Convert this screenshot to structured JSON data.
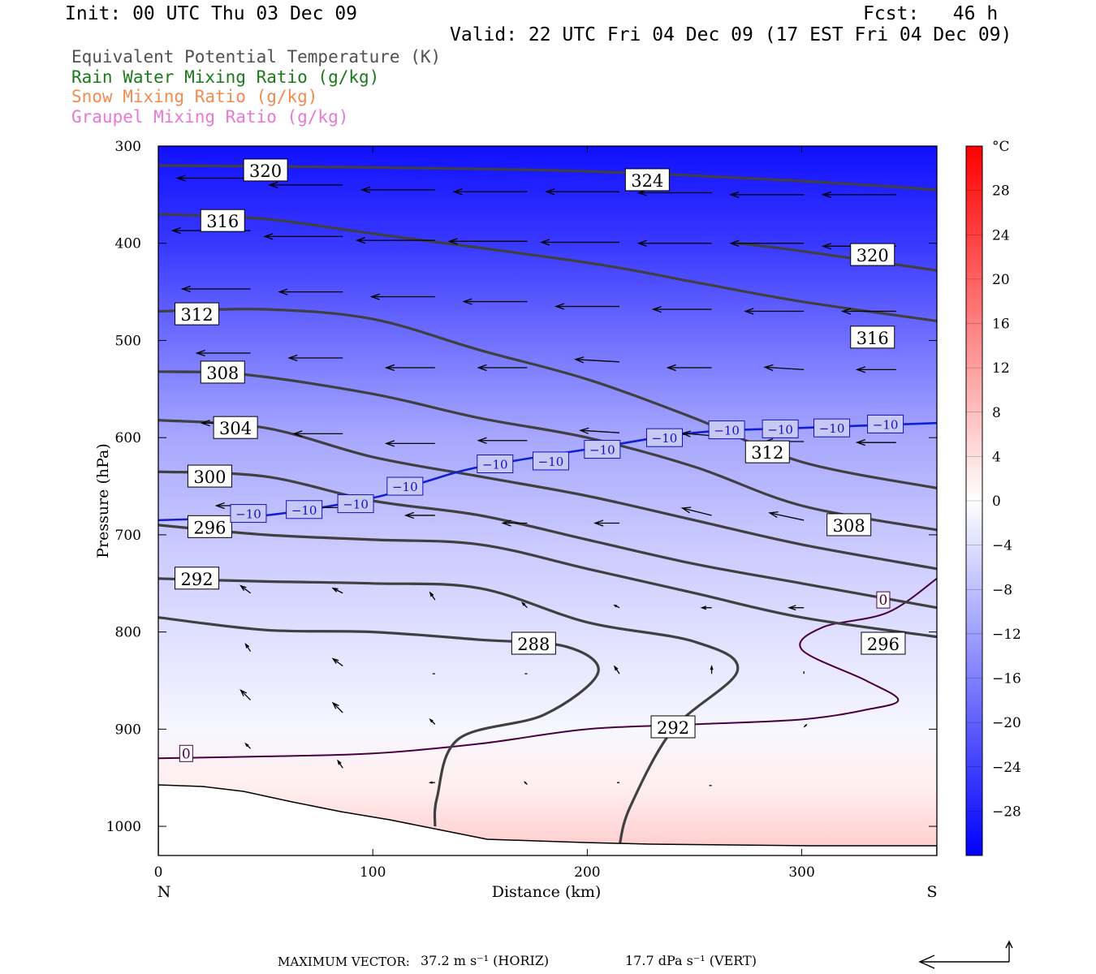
{
  "header": {
    "init": "Init: 00 UTC Thu 03 Dec 09",
    "fcst": "Fcst:   46 h",
    "valid": "Valid: 22 UTC Fri 04 Dec 09 (17 EST Fri 04 Dec 09)"
  },
  "legend": [
    {
      "text": "Equivalent Potential Temperature (K)",
      "color": "#505050"
    },
    {
      "text": "Rain Water Mixing Ratio (g/kg)",
      "color": "#1a7a1a"
    },
    {
      "text": "Snow Mixing Ratio (g/kg)",
      "color": "#f08c50"
    },
    {
      "text": "Graupel Mixing Ratio (g/kg)",
      "color": "#e878d8"
    }
  ],
  "footer": {
    "max_vector": "MAXIMUM VECTOR:",
    "horiz": "37.2 m s⁻¹ (HORIZ)",
    "vert": "17.7 dPa s⁻¹ (VERT)"
  },
  "chart_data": {
    "type": "heatmap",
    "title": "",
    "xlabel": "Distance (km)",
    "ylabel": "Pressure (hPa)",
    "xlim": [
      0,
      363
    ],
    "ylim": [
      1030,
      300
    ],
    "x_ticks": [
      0,
      100,
      200,
      300
    ],
    "y_ticks": [
      300,
      400,
      500,
      600,
      700,
      800,
      900,
      1000
    ],
    "x_end_labels": {
      "left": "N",
      "right": "S"
    },
    "colorbar": {
      "unit": "°C",
      "range": [
        -32,
        32
      ],
      "ticks": [
        28,
        24,
        20,
        16,
        12,
        8,
        4,
        0,
        -4,
        -8,
        -12,
        -16,
        -20,
        -24,
        -28
      ],
      "cold_color": "#0000ff",
      "warm_color": "#ff0000"
    },
    "temperature_field_samples": [
      {
        "p": 300,
        "t": -30
      },
      {
        "p": 400,
        "t": -25
      },
      {
        "p": 500,
        "t": -18
      },
      {
        "p": 600,
        "t": -11
      },
      {
        "p": 700,
        "t": -7
      },
      {
        "p": 800,
        "t": -4
      },
      {
        "p": 900,
        "t": -1
      },
      {
        "p": 960,
        "t": 2
      },
      {
        "p": 1020,
        "t": 6
      }
    ],
    "theta_e_contours": [
      {
        "value": 320,
        "points": [
          [
            0,
            320
          ],
          [
            100,
            322
          ],
          [
            200,
            326
          ],
          [
            300,
            336
          ],
          [
            363,
            345
          ]
        ]
      },
      {
        "value": 316,
        "points": [
          [
            0,
            370
          ],
          [
            50,
            375
          ],
          [
            100,
            390
          ],
          [
            200,
            420
          ],
          [
            250,
            440
          ],
          [
            300,
            460
          ],
          [
            363,
            480
          ]
        ]
      },
      {
        "value": 320,
        "points": [
          [
            270,
            400
          ],
          [
            300,
            408
          ],
          [
            363,
            428
          ]
        ]
      },
      {
        "value": 312,
        "points": [
          [
            0,
            470
          ],
          [
            50,
            468
          ],
          [
            100,
            478
          ],
          [
            150,
            510
          ],
          [
            200,
            540
          ],
          [
            250,
            580
          ],
          [
            300,
            625
          ],
          [
            363,
            652
          ]
        ]
      },
      {
        "value": 308,
        "points": [
          [
            0,
            532
          ],
          [
            40,
            535
          ],
          [
            100,
            555
          ],
          [
            150,
            580
          ],
          [
            200,
            600
          ],
          [
            250,
            630
          ],
          [
            300,
            670
          ],
          [
            363,
            695
          ]
        ]
      },
      {
        "value": 304,
        "points": [
          [
            0,
            582
          ],
          [
            50,
            590
          ],
          [
            100,
            620
          ],
          [
            150,
            640
          ],
          [
            200,
            660
          ],
          [
            250,
            685
          ],
          [
            300,
            710
          ],
          [
            363,
            735
          ]
        ]
      },
      {
        "value": 300,
        "points": [
          [
            0,
            635
          ],
          [
            50,
            640
          ],
          [
            100,
            665
          ],
          [
            150,
            680
          ],
          [
            200,
            705
          ],
          [
            250,
            730
          ],
          [
            300,
            750
          ],
          [
            363,
            775
          ]
        ]
      },
      {
        "value": 296,
        "points": [
          [
            0,
            690
          ],
          [
            50,
            700
          ],
          [
            100,
            705
          ],
          [
            150,
            710
          ],
          [
            200,
            735
          ],
          [
            250,
            760
          ],
          [
            300,
            785
          ],
          [
            363,
            805
          ]
        ]
      },
      {
        "value": 292,
        "points": [
          [
            0,
            745
          ],
          [
            50,
            748
          ],
          [
            100,
            750
          ],
          [
            150,
            755
          ],
          [
            200,
            790
          ],
          [
            250,
            810
          ],
          [
            270,
            840
          ],
          [
            240,
            900
          ],
          [
            220,
            980
          ],
          [
            215,
            1020
          ]
        ]
      },
      {
        "value": 288,
        "points": [
          [
            0,
            785
          ],
          [
            50,
            798
          ],
          [
            100,
            800
          ],
          [
            150,
            808
          ],
          [
            190,
            815
          ],
          [
            205,
            842
          ],
          [
            180,
            885
          ],
          [
            140,
            910
          ],
          [
            130,
            970
          ],
          [
            129,
            1000
          ]
        ]
      }
    ],
    "zero_deg_isotherm": [
      {
        "points": [
          [
            0,
            930
          ],
          [
            50,
            928
          ],
          [
            100,
            925
          ],
          [
            150,
            915
          ],
          [
            200,
            900
          ],
          [
            250,
            895
          ],
          [
            300,
            890
          ],
          [
            330,
            880
          ],
          [
            345,
            870
          ],
          [
            330,
            850
          ],
          [
            300,
            818
          ],
          [
            310,
            795
          ],
          [
            340,
            780
          ],
          [
            363,
            745
          ]
        ]
      }
    ],
    "minus10_isotherm": {
      "value": -10,
      "points": [
        [
          0,
          685
        ],
        [
          50,
          680
        ],
        [
          100,
          662
        ],
        [
          125,
          645
        ],
        [
          150,
          630
        ],
        [
          200,
          612
        ],
        [
          250,
          595
        ],
        [
          300,
          590
        ],
        [
          363,
          585
        ]
      ]
    },
    "theta_e_labels": [
      {
        "text": "320",
        "x": 50,
        "p": 325
      },
      {
        "text": "324",
        "x": 228,
        "p": 335
      },
      {
        "text": "316",
        "x": 30,
        "p": 377
      },
      {
        "text": "320",
        "x": 333,
        "p": 412
      },
      {
        "text": "312",
        "x": 18,
        "p": 473
      },
      {
        "text": "316",
        "x": 333,
        "p": 497
      },
      {
        "text": "308",
        "x": 30,
        "p": 533
      },
      {
        "text": "304",
        "x": 36,
        "p": 590
      },
      {
        "text": "312",
        "x": 284,
        "p": 615
      },
      {
        "text": "300",
        "x": 24,
        "p": 640
      },
      {
        "text": "308",
        "x": 322,
        "p": 690
      },
      {
        "text": "296",
        "x": 24,
        "p": 692
      },
      {
        "text": "292",
        "x": 18,
        "p": 745
      },
      {
        "text": "288",
        "x": 175,
        "p": 812
      },
      {
        "text": "296",
        "x": 338,
        "p": 812
      },
      {
        "text": "292",
        "x": 240,
        "p": 898
      }
    ],
    "zero_labels": [
      {
        "text": "0",
        "x": 13,
        "p": 925
      },
      {
        "text": "0",
        "x": 338,
        "p": 767
      }
    ],
    "minus10_labels": [
      {
        "text": "−10",
        "x": 42,
        "p": 678
      },
      {
        "text": "−10",
        "x": 68,
        "p": 674
      },
      {
        "text": "−10",
        "x": 92,
        "p": 668
      },
      {
        "text": "−10",
        "x": 115,
        "p": 650
      },
      {
        "text": "−10",
        "x": 157,
        "p": 627
      },
      {
        "text": "−10",
        "x": 183,
        "p": 624
      },
      {
        "text": "−10",
        "x": 207,
        "p": 612
      },
      {
        "text": "−10",
        "x": 236,
        "p": 600
      },
      {
        "text": "−10",
        "x": 265,
        "p": 592
      },
      {
        "text": "−10",
        "x": 290,
        "p": 591
      },
      {
        "text": "−10",
        "x": 314,
        "p": 590
      },
      {
        "text": "−10",
        "x": 339,
        "p": 586
      }
    ],
    "wind_vectors": [
      {
        "x": 0,
        "p": 333,
        "u": -32,
        "w": 0
      },
      {
        "x": 43,
        "p": 333,
        "u": -30,
        "w": 0
      },
      {
        "x": 86,
        "p": 340,
        "u": -30,
        "w": 0
      },
      {
        "x": 129,
        "p": 345,
        "u": -30,
        "w": 0
      },
      {
        "x": 172,
        "p": 347,
        "u": -30,
        "w": 0
      },
      {
        "x": 215,
        "p": 347,
        "u": -30,
        "w": 0
      },
      {
        "x": 258,
        "p": 348,
        "u": -30,
        "w": 0
      },
      {
        "x": 301,
        "p": 350,
        "u": -30,
        "w": 0
      },
      {
        "x": 344,
        "p": 350,
        "u": -30,
        "w": 0
      },
      {
        "x": 0,
        "p": 385,
        "u": -32,
        "w": 0
      },
      {
        "x": 43,
        "p": 387,
        "u": -32,
        "w": 0
      },
      {
        "x": 86,
        "p": 393,
        "u": -32,
        "w": 0
      },
      {
        "x": 129,
        "p": 397,
        "u": -32,
        "w": 0
      },
      {
        "x": 172,
        "p": 398,
        "u": -32,
        "w": 0
      },
      {
        "x": 215,
        "p": 399,
        "u": -32,
        "w": 0
      },
      {
        "x": 258,
        "p": 400,
        "u": -30,
        "w": 0
      },
      {
        "x": 301,
        "p": 400,
        "u": -30,
        "w": 0
      },
      {
        "x": 344,
        "p": 403,
        "u": -30,
        "w": 0
      },
      {
        "x": 0,
        "p": 445,
        "u": -28,
        "w": 0
      },
      {
        "x": 43,
        "p": 447,
        "u": -28,
        "w": 0
      },
      {
        "x": 86,
        "p": 450,
        "u": -26,
        "w": 0
      },
      {
        "x": 129,
        "p": 455,
        "u": -26,
        "w": 0
      },
      {
        "x": 172,
        "p": 460,
        "u": -26,
        "w": 0
      },
      {
        "x": 215,
        "p": 465,
        "u": -26,
        "w": 0
      },
      {
        "x": 258,
        "p": 468,
        "u": -24,
        "w": 0
      },
      {
        "x": 301,
        "p": 470,
        "u": -24,
        "w": 0
      },
      {
        "x": 344,
        "p": 470,
        "u": -22,
        "w": 0
      },
      {
        "x": 0,
        "p": 510,
        "u": -26,
        "w": 2
      },
      {
        "x": 43,
        "p": 513,
        "u": -22,
        "w": 0
      },
      {
        "x": 86,
        "p": 518,
        "u": -22,
        "w": 0
      },
      {
        "x": 129,
        "p": 528,
        "u": -20,
        "w": 0
      },
      {
        "x": 172,
        "p": 528,
        "u": -20,
        "w": 0
      },
      {
        "x": 215,
        "p": 522,
        "u": -18,
        "w": 1
      },
      {
        "x": 258,
        "p": 528,
        "u": -18,
        "w": 0
      },
      {
        "x": 301,
        "p": 530,
        "u": -16,
        "w": 1
      },
      {
        "x": 344,
        "p": 530,
        "u": -16,
        "w": 0
      },
      {
        "x": 0,
        "p": 588,
        "u": -22,
        "w": 2
      },
      {
        "x": 43,
        "p": 585,
        "u": -20,
        "w": 0
      },
      {
        "x": 86,
        "p": 596,
        "u": -20,
        "w": 0
      },
      {
        "x": 129,
        "p": 606,
        "u": -20,
        "w": 0
      },
      {
        "x": 172,
        "p": 603,
        "u": -20,
        "w": 0
      },
      {
        "x": 215,
        "p": 595,
        "u": -16,
        "w": 1
      },
      {
        "x": 258,
        "p": 598,
        "u": -12,
        "w": 1
      },
      {
        "x": 301,
        "p": 604,
        "u": -16,
        "w": 0
      },
      {
        "x": 344,
        "p": 605,
        "u": -16,
        "w": 0
      },
      {
        "x": 0,
        "p": 672,
        "u": -18,
        "w": 8
      },
      {
        "x": 43,
        "p": 670,
        "u": -14,
        "w": 0
      },
      {
        "x": 86,
        "p": 672,
        "u": -14,
        "w": 0
      },
      {
        "x": 129,
        "p": 680,
        "u": -12,
        "w": 0
      },
      {
        "x": 172,
        "p": 688,
        "u": -10,
        "w": 0
      },
      {
        "x": 215,
        "p": 688,
        "u": -10,
        "w": 0
      },
      {
        "x": 258,
        "p": 680,
        "u": -12,
        "w": 3
      },
      {
        "x": 301,
        "p": 685,
        "u": -14,
        "w": 3
      },
      {
        "x": 0,
        "p": 752,
        "u": -6,
        "w": 8
      },
      {
        "x": 43,
        "p": 760,
        "u": -4,
        "w": 3
      },
      {
        "x": 86,
        "p": 760,
        "u": -4,
        "w": 2
      },
      {
        "x": 129,
        "p": 767,
        "u": -2,
        "w": 3
      },
      {
        "x": 172,
        "p": 775,
        "u": -2,
        "w": 2
      },
      {
        "x": 215,
        "p": 775,
        "u": -2,
        "w": 1
      },
      {
        "x": 258,
        "p": 775,
        "u": -4,
        "w": 0
      },
      {
        "x": 301,
        "p": 775,
        "u": -6,
        "w": 0
      },
      {
        "x": 0,
        "p": 806,
        "u": -2,
        "w": 4
      },
      {
        "x": 43,
        "p": 820,
        "u": -2,
        "w": 3
      },
      {
        "x": 86,
        "p": 835,
        "u": -4,
        "w": 3
      },
      {
        "x": 129,
        "p": 843,
        "u": -1,
        "w": 0
      },
      {
        "x": 172,
        "p": 843,
        "u": -1,
        "w": 0
      },
      {
        "x": 215,
        "p": 843,
        "u": -2,
        "w": 3
      },
      {
        "x": 258,
        "p": 843,
        "u": 0,
        "w": 3
      },
      {
        "x": 301,
        "p": 843,
        "u": 0,
        "w": 1
      },
      {
        "x": 0,
        "p": 867,
        "u": -2,
        "w": 3
      },
      {
        "x": 43,
        "p": 870,
        "u": -4,
        "w": 4
      },
      {
        "x": 86,
        "p": 883,
        "u": -4,
        "w": 4
      },
      {
        "x": 129,
        "p": 895,
        "u": -2,
        "w": 2
      },
      {
        "x": 0,
        "p": 900,
        "u": -2,
        "w": 1
      },
      {
        "x": 43,
        "p": 920,
        "u": -2,
        "w": 2
      },
      {
        "x": 86,
        "p": 940,
        "u": -2,
        "w": 3
      },
      {
        "x": 129,
        "p": 955,
        "u": -2,
        "w": 0
      },
      {
        "x": 172,
        "p": 957,
        "u": -1,
        "w": 1
      },
      {
        "x": 215,
        "p": 955,
        "u": -1,
        "w": 0
      },
      {
        "x": 258,
        "p": 958,
        "u": -1,
        "w": 0
      },
      {
        "x": 301,
        "p": 898,
        "u": 1,
        "w": 1
      }
    ]
  }
}
